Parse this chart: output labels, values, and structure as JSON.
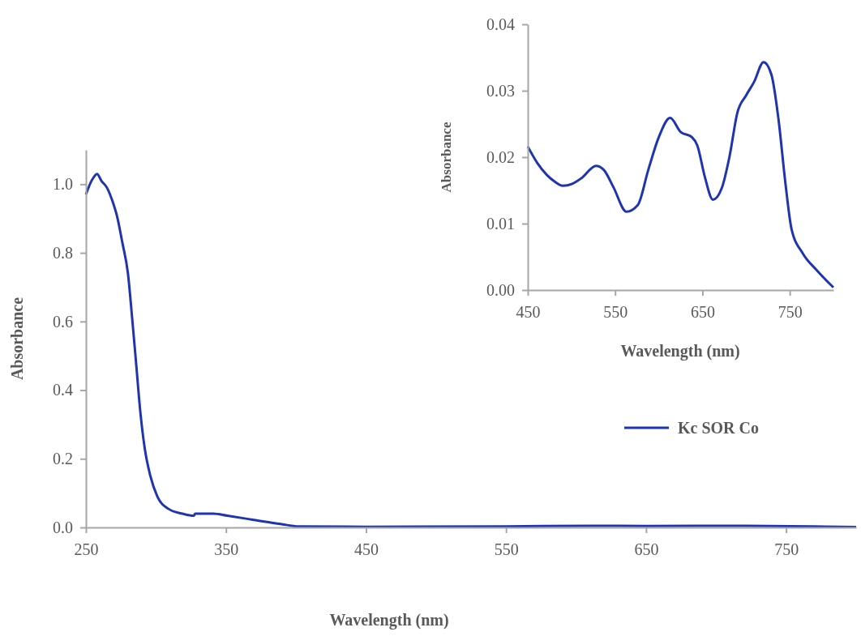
{
  "chart_data": [
    {
      "type": "line",
      "xlabel": "Wavelength (nm)",
      "ylabel": "Absorbance",
      "xlim": [
        250,
        800
      ],
      "xticks": [
        250,
        350,
        450,
        550,
        650,
        750
      ],
      "ylim": [
        0,
        1.1
      ],
      "yticks": [
        {
          "value": 0,
          "label": "0.0"
        },
        {
          "value": 0.2,
          "label": "0.2"
        },
        {
          "value": 0.4,
          "label": "0.4"
        },
        {
          "value": 0.6,
          "label": "0.6"
        },
        {
          "value": 0.8,
          "label": "0.8"
        },
        {
          "value": 1,
          "label": "1.0"
        }
      ],
      "legend": "right",
      "grid": false,
      "series": [
        {
          "name": "Kc SOR Co",
          "color": "#1f35b0",
          "x": [
            250,
            254,
            258,
            261,
            265,
            269,
            272,
            276,
            280,
            283,
            286,
            289,
            292,
            296,
            301,
            309,
            319,
            327,
            328,
            341,
            351,
            370,
            389,
            402,
            450,
            550,
            610,
            650,
            720,
            800
          ],
          "values": [
            0.97,
            1.01,
            1.03,
            1.01,
            0.99,
            0.95,
            0.91,
            0.83,
            0.74,
            0.61,
            0.47,
            0.33,
            0.23,
            0.15,
            0.09,
            0.054,
            0.04,
            0.034,
            0.04,
            0.04,
            0.034,
            0.022,
            0.01,
            0.003,
            0.002,
            0.003,
            0.005,
            0.004,
            0.005,
            0.001
          ]
        }
      ]
    },
    {
      "type": "line",
      "xlabel": "Wavelength (nm)",
      "ylabel": "Absorbance",
      "xlim": [
        450,
        800
      ],
      "xticks": [
        450,
        550,
        650,
        750
      ],
      "ylim": [
        0,
        0.04
      ],
      "yticks": [
        {
          "value": 0,
          "label": "0.00"
        },
        {
          "value": 0.01,
          "label": "0.01"
        },
        {
          "value": 0.02,
          "label": "0.02"
        },
        {
          "value": 0.03,
          "label": "0.03"
        },
        {
          "value": 0.04,
          "label": "0.04"
        }
      ],
      "grid": false,
      "series": [
        {
          "color": "#1f35b0",
          "x": [
            450,
            461,
            472,
            481,
            490,
            501,
            512,
            528,
            537,
            548,
            563,
            576,
            588,
            600,
            613,
            625,
            638,
            644,
            653,
            662,
            672,
            681,
            690,
            700,
            709,
            720,
            729,
            737,
            745,
            752,
            765,
            780,
            800
          ],
          "values": [
            0.0216,
            0.0191,
            0.0173,
            0.0163,
            0.0157,
            0.016,
            0.0169,
            0.0187,
            0.0181,
            0.0155,
            0.0118,
            0.0128,
            0.0181,
            0.023,
            0.0259,
            0.0238,
            0.023,
            0.0218,
            0.0169,
            0.0136,
            0.0153,
            0.0201,
            0.0267,
            0.0293,
            0.0313,
            0.0343,
            0.0324,
            0.0258,
            0.0161,
            0.0092,
            0.0055,
            0.0031,
            0.0004
          ]
        }
      ]
    }
  ]
}
